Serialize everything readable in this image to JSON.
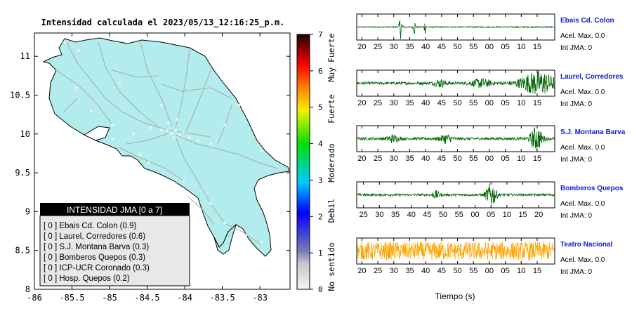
{
  "map": {
    "title": "Intensidad calculada el 2023/05/13_12:16:25_p.m.",
    "x_ticks": [
      "-86",
      "-85.5",
      "-85",
      "-84.5",
      "-84",
      "-83.5",
      "-83"
    ],
    "y_ticks": [
      "11",
      "10.5",
      "10",
      "9.5",
      "9",
      "8.5",
      "8"
    ],
    "xlim": [
      -86,
      -82.6
    ],
    "ylim": [
      8,
      11.3
    ],
    "colors": {
      "land": "#b3ecec",
      "roads": "#a8a8a8",
      "border": "#000000"
    }
  },
  "colorbar": {
    "ticks": [
      "0",
      "1",
      "2",
      "3",
      "4",
      "5",
      "6",
      "7"
    ],
    "range": [
      0,
      7
    ],
    "categories": [
      "No sentido",
      "Debil",
      "Moderado",
      "Fuerte",
      "Muy Fuerte"
    ],
    "colors": [
      "#f4f4f4",
      "#7a7ab5",
      "#0000ff",
      "#00c8ff",
      "#00e000",
      "#f0f000",
      "#ff9000",
      "#ff0000",
      "#200000"
    ]
  },
  "legend": {
    "title": "INTENSIDAD JMA [0 a 7]",
    "entries": [
      "[ 0 ]  Ebais Cd. Colon (0.9)",
      "[ 0 ]  Laurel, Corredores (0.6)",
      "[ 0 ]  S.J. Montana Barva (0.3)",
      "[ 0 ]  Bomberos Quepos (0.3)",
      "[ 0 ]  ICP-UCR Coronado (0.3)",
      "[ 0 ]  Hosp. Quepos (0.2)"
    ]
  },
  "chart_data": [
    {
      "type": "line",
      "title": "Ebais Cd. Colon",
      "tick_labels": [
        "20",
        "25",
        "30",
        "35",
        "40",
        "45",
        "50",
        "55",
        "00",
        "05",
        "10",
        "15"
      ],
      "stats": [
        "Acel. Max. 0.0",
        "Int JMA: 0"
      ],
      "color": "#006400",
      "noise_level": 0.05,
      "bursts": [
        {
          "t": 0.22,
          "amp": 1.0,
          "width": 0.008
        },
        {
          "t": 0.29,
          "amp": 0.7,
          "width": 0.006
        },
        {
          "t": 0.345,
          "amp": 0.55,
          "width": 0.006
        }
      ]
    },
    {
      "type": "line",
      "title": "Laurel, Corredores",
      "tick_labels": [
        "20",
        "25",
        "30",
        "35",
        "40",
        "45",
        "50",
        "55",
        "00",
        "05",
        "10",
        "15"
      ],
      "stats": [
        "Acel. Max. 0.0",
        "Int JMA: 0"
      ],
      "color": "#006400",
      "noise_level": 0.12,
      "bursts": [
        {
          "t": 0.42,
          "amp": 0.3,
          "width": 0.03
        },
        {
          "t": 0.63,
          "amp": 0.35,
          "width": 0.05
        },
        {
          "t": 0.92,
          "amp": 1.0,
          "width": 0.09
        }
      ]
    },
    {
      "type": "line",
      "title": "S.J. Montana Barva",
      "tick_labels": [
        "20",
        "25",
        "30",
        "35",
        "40",
        "45",
        "50",
        "55",
        "00",
        "05",
        "10",
        "15"
      ],
      "stats": [
        "Acel. Max. 0.0",
        "Int JMA: 0"
      ],
      "color": "#006400",
      "noise_level": 0.12,
      "bursts": [
        {
          "t": 0.18,
          "amp": 0.3,
          "width": 0.03
        },
        {
          "t": 0.45,
          "amp": 0.35,
          "width": 0.03
        },
        {
          "t": 0.91,
          "amp": 1.0,
          "width": 0.03
        }
      ]
    },
    {
      "type": "line",
      "title": "Bomberos Quepos",
      "tick_labels": [
        "25",
        "30",
        "35",
        "40",
        "45",
        "50",
        "55",
        "00",
        "05",
        "10",
        "15",
        "20"
      ],
      "stats": [
        "Acel. Max. 0.0",
        "Int JMA: 0"
      ],
      "color": "#006400",
      "noise_level": 0.1,
      "bursts": [
        {
          "t": 0.4,
          "amp": 0.3,
          "width": 0.02
        },
        {
          "t": 0.68,
          "amp": 1.0,
          "width": 0.025
        }
      ]
    },
    {
      "type": "line",
      "title": "Teatro Nacional",
      "tick_labels": [
        "20",
        "25",
        "30",
        "35",
        "40",
        "45",
        "50",
        "55",
        "00",
        "05",
        "10",
        "15"
      ],
      "stats": [
        "Acel. Max. 0.0",
        "Int JMA: 0"
      ],
      "color": "#ffa500",
      "noise_level": 0.8,
      "bursts": []
    }
  ],
  "x_axis_label": "Tiempo (s)"
}
